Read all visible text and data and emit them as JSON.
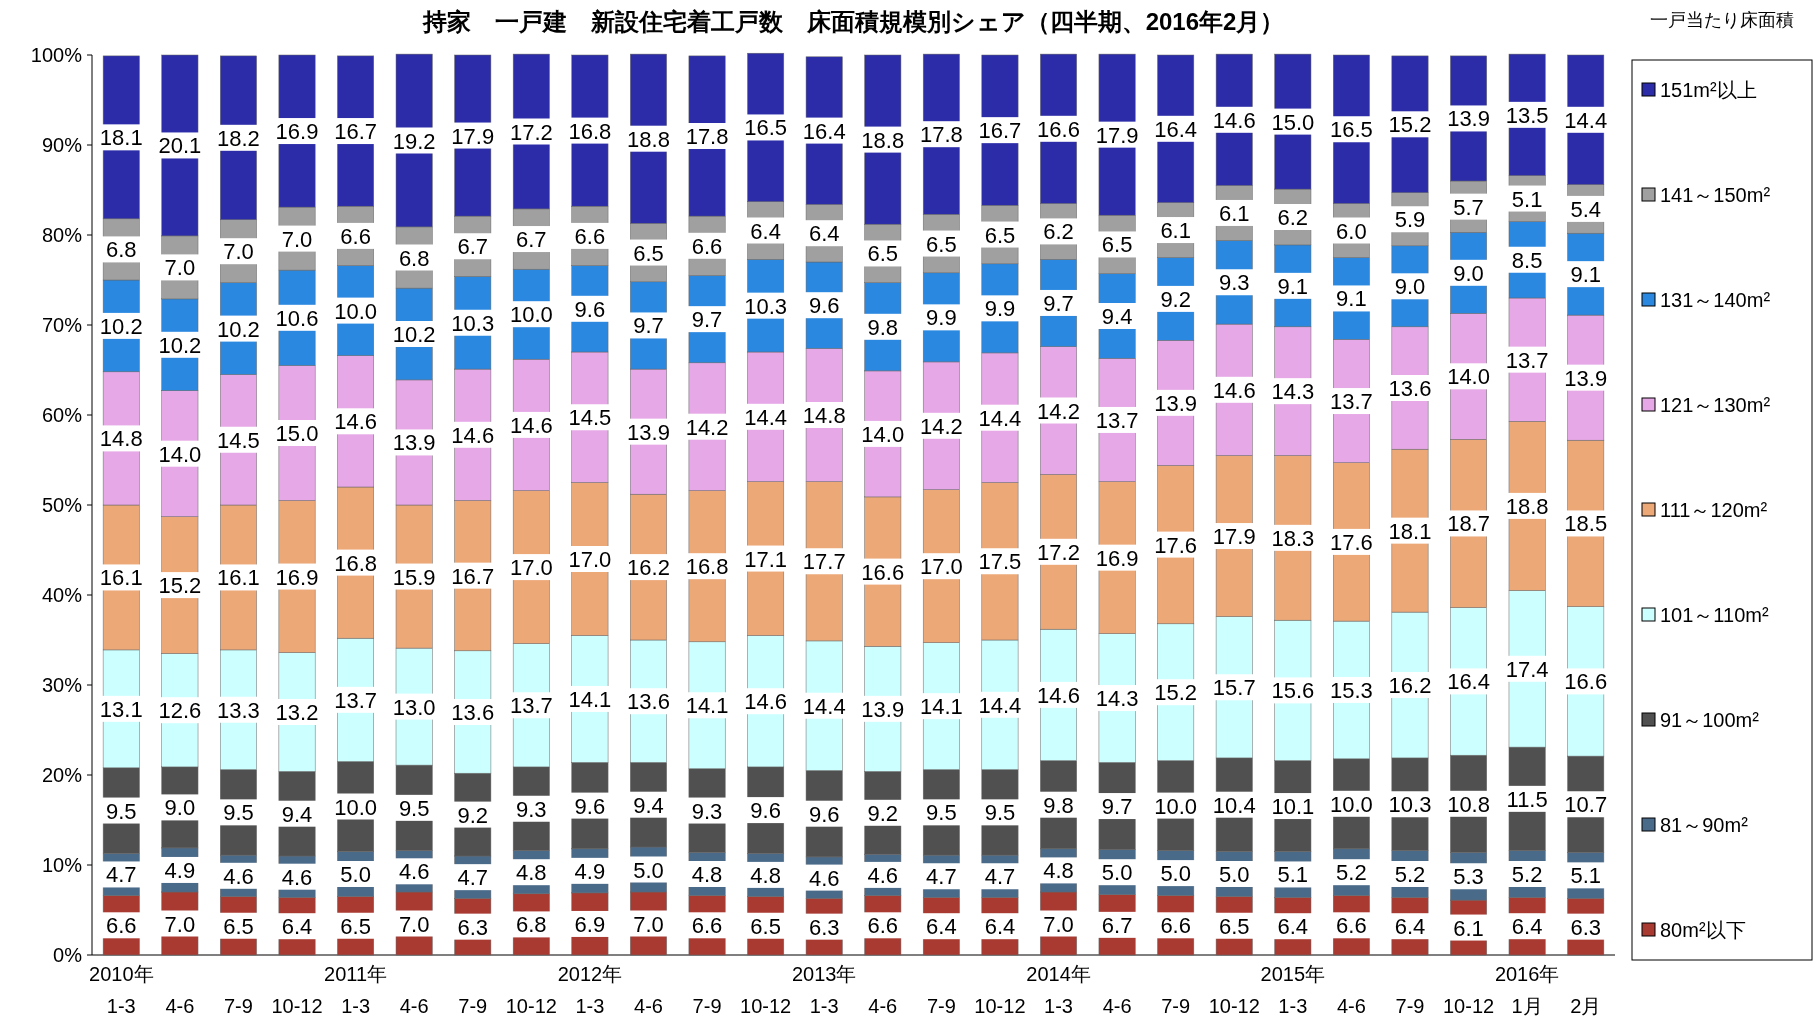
{
  "chart_data": {
    "type": "bar",
    "stacked": true,
    "grid": false,
    "legend": "right",
    "title": "持家　一戸建　新設住宅着工戸数　床面積規模別シェア（四半期、2016年2月）",
    "legend_title": "一戸当たり床面積",
    "categories": [
      "2010年\n1-3",
      "4-6",
      "7-9",
      "10-12",
      "2011年\n1-3",
      "4-6",
      "7-9",
      "10-12",
      "2012年\n1-3",
      "4-6",
      "7-9",
      "10-12",
      "2013年\n1-3",
      "4-6",
      "7-9",
      "10-12",
      "2014年\n1-3",
      "4-6",
      "7-9",
      "10-12",
      "2015年\n1-3",
      "4-6",
      "7-9",
      "10-12",
      "2016年\n1月",
      "2月"
    ],
    "ylim": [
      0,
      100
    ],
    "yticks": [
      {
        "value": 0,
        "label": "0%"
      },
      {
        "value": 10,
        "label": "10%"
      },
      {
        "value": 20,
        "label": "20%"
      },
      {
        "value": 30,
        "label": "30%"
      },
      {
        "value": 40,
        "label": "40%"
      },
      {
        "value": 50,
        "label": "50%"
      },
      {
        "value": 60,
        "label": "60%"
      },
      {
        "value": 70,
        "label": "70%"
      },
      {
        "value": 80,
        "label": "80%"
      },
      {
        "value": 90,
        "label": "90%"
      },
      {
        "value": 100,
        "label": "100%"
      }
    ],
    "series": [
      {
        "name": "80m²以下",
        "color": "#a83a32",
        "values": [
          6.6,
          7.0,
          6.5,
          6.4,
          6.5,
          7.0,
          6.3,
          6.8,
          6.9,
          7.0,
          6.6,
          6.5,
          6.3,
          6.6,
          6.4,
          6.4,
          7.0,
          6.7,
          6.6,
          6.5,
          6.4,
          6.6,
          6.4,
          6.1,
          6.4,
          6.3
        ],
        "value_labels": [
          "6.6",
          "7.0",
          "6.5",
          "6.4",
          "6.5",
          "7.0",
          "6.3",
          "6.8",
          "6.9",
          "7.0",
          "6.6",
          "6.5",
          "6.3",
          "6.6",
          "6.4",
          "6.4",
          "7.0",
          "6.7",
          "6.6",
          "6.5",
          "6.4",
          "6.6",
          "6.4",
          "6.1",
          "6.4",
          "6.3"
        ]
      },
      {
        "name": "81～90m²",
        "color": "#4a6a8a",
        "values": [
          4.7,
          4.9,
          4.6,
          4.6,
          5.0,
          4.6,
          4.7,
          4.8,
          4.9,
          5.0,
          4.8,
          4.8,
          4.6,
          4.6,
          4.7,
          4.7,
          4.8,
          5.0,
          5.0,
          5.0,
          5.1,
          5.2,
          5.2,
          5.3,
          5.2,
          5.1
        ],
        "value_labels": [
          "4.7",
          "4.9",
          "4.6",
          "4.6",
          "5.0",
          "4.6",
          "4.7",
          "4.8",
          "4.9",
          "5.0",
          "4.8",
          "4.8",
          "4.6",
          "4.6",
          "4.7",
          "4.7",
          "4.8",
          "5.0",
          "5.0",
          "5.0",
          "5.1",
          "5.2",
          "5.2",
          "5.3",
          "5.2",
          "5.1"
        ]
      },
      {
        "name": "91～100m²",
        "color": "#505050",
        "values": [
          9.5,
          9.0,
          9.5,
          9.4,
          10.0,
          9.5,
          9.2,
          9.3,
          9.6,
          9.4,
          9.3,
          9.6,
          9.6,
          9.2,
          9.5,
          9.5,
          9.8,
          9.7,
          10.0,
          10.4,
          10.1,
          10.0,
          10.3,
          10.8,
          11.5,
          10.7
        ],
        "value_labels": [
          "9.5",
          "9.0",
          "9.5",
          "9.4",
          "10.0",
          "9.5",
          "9.2",
          "9.3",
          "9.6",
          "9.4",
          "9.3",
          "9.6",
          "9.6",
          "9.2",
          "9.5",
          "9.5",
          "9.8",
          "9.7",
          "10.0",
          "10.4",
          "10.1",
          "10.0",
          "10.3",
          "10.8",
          "11.5",
          "10.7"
        ]
      },
      {
        "name": "101～110m²",
        "color": "#ccffff",
        "values": [
          13.1,
          12.6,
          13.3,
          13.2,
          13.7,
          13.0,
          13.6,
          13.7,
          14.1,
          13.6,
          14.1,
          14.6,
          14.4,
          13.9,
          14.1,
          14.4,
          14.6,
          14.3,
          15.2,
          15.7,
          15.6,
          15.3,
          16.2,
          16.4,
          17.4,
          16.6
        ],
        "value_labels": [
          "13.1",
          "12.6",
          "13.3",
          "13.2",
          "13.7",
          "13.0",
          "13.6",
          "13.7",
          "14.1",
          "13.6",
          "14.1",
          "14.6",
          "14.4",
          "13.9",
          "14.1",
          "14.4",
          "14.6",
          "14.3",
          "15.2",
          "15.7",
          "15.6",
          "15.3",
          "16.2",
          "16.4",
          "17.4",
          "16.6"
        ]
      },
      {
        "name": "111～120m²",
        "color": "#eda878",
        "values": [
          16.1,
          15.2,
          16.1,
          16.9,
          16.8,
          15.9,
          16.7,
          17.0,
          17.0,
          16.2,
          16.8,
          17.1,
          17.7,
          16.6,
          17.0,
          17.5,
          17.2,
          16.9,
          17.6,
          17.9,
          18.3,
          17.6,
          18.1,
          18.7,
          18.8,
          18.5
        ],
        "value_labels": [
          "16.1",
          "15.2",
          "16.1",
          "16.9",
          "16.8",
          "15.9",
          "16.7",
          "17.0",
          "17.0",
          "16.2",
          "16.8",
          "17.1",
          "17.7",
          "16.6",
          "17.0",
          "17.5",
          "17.2",
          "16.9",
          "17.6",
          "17.9",
          "18.3",
          "17.6",
          "18.1",
          "18.7",
          "18.8",
          "18.5"
        ]
      },
      {
        "name": "121～130m²",
        "color": "#e6a8e6",
        "values": [
          14.8,
          14.0,
          14.5,
          15.0,
          14.6,
          13.9,
          14.6,
          14.6,
          14.5,
          13.9,
          14.2,
          14.4,
          14.8,
          14.0,
          14.2,
          14.4,
          14.2,
          13.7,
          13.9,
          14.6,
          14.3,
          13.7,
          13.6,
          14.0,
          13.7,
          13.9
        ],
        "value_labels": [
          "14.8",
          "14.0",
          "14.5",
          "15.0",
          "14.6",
          "13.9",
          "14.6",
          "14.6",
          "14.5",
          "13.9",
          "14.2",
          "14.4",
          "14.8",
          "14.0",
          "14.2",
          "14.4",
          "14.2",
          "13.7",
          "13.9",
          "14.6",
          "14.3",
          "13.7",
          "13.6",
          "14.0",
          "13.7",
          "13.9"
        ]
      },
      {
        "name": "131～140m²",
        "color": "#2a88e0",
        "values": [
          10.2,
          10.2,
          10.2,
          10.6,
          10.0,
          10.2,
          10.3,
          10.0,
          9.6,
          9.7,
          9.7,
          10.3,
          9.6,
          9.8,
          9.9,
          9.9,
          9.7,
          9.4,
          9.2,
          9.3,
          9.1,
          9.1,
          9.0,
          9.0,
          8.5,
          9.1
        ],
        "value_labels": [
          "10.2",
          "10.2",
          "10.2",
          "10.6",
          "10.0",
          "10.2",
          "10.3",
          "10.0",
          "9.6",
          "9.7",
          "9.7",
          "10.3",
          "9.6",
          "9.8",
          "9.9",
          "9.9",
          "9.7",
          "9.4",
          "9.2",
          "9.3",
          "9.1",
          "9.1",
          "9.0",
          "9.0",
          "8.5",
          "9.1"
        ]
      },
      {
        "name": "141～150m²",
        "color": "#a0a0a0",
        "values": [
          6.8,
          7.0,
          7.0,
          7.0,
          6.6,
          6.8,
          6.7,
          6.7,
          6.6,
          6.5,
          6.6,
          6.4,
          6.4,
          6.5,
          6.5,
          6.5,
          6.2,
          6.5,
          6.1,
          6.1,
          6.2,
          6.0,
          5.9,
          5.7,
          5.1,
          5.4
        ],
        "value_labels": [
          "6.8",
          "7.0",
          "7.0",
          "7.0",
          "6.6",
          "6.8",
          "6.7",
          "6.7",
          "6.6",
          "6.5",
          "6.6",
          "6.4",
          "6.4",
          "6.5",
          "6.5",
          "6.5",
          "6.2",
          "6.5",
          "6.1",
          "6.1",
          "6.2",
          "6.0",
          "5.9",
          "5.7",
          "5.1",
          "5.4"
        ]
      },
      {
        "name": "151m²以上",
        "color": "#2c2ca8",
        "values": [
          18.1,
          20.1,
          18.2,
          16.9,
          16.7,
          19.2,
          17.9,
          17.2,
          16.8,
          18.8,
          17.8,
          16.5,
          16.4,
          18.8,
          17.8,
          16.7,
          16.6,
          17.9,
          16.4,
          14.6,
          15.0,
          16.5,
          15.2,
          13.9,
          13.5,
          14.4
        ],
        "value_labels": [
          "18.1",
          "20.1",
          "18.2",
          "16.9",
          "16.7",
          "19.2",
          "17.9",
          "17.2",
          "16.8",
          "18.8",
          "17.8",
          "16.5",
          "16.4",
          "18.8",
          "17.8",
          "16.7",
          "16.6",
          "17.9",
          "16.4",
          "14.6",
          "15.0",
          "16.5",
          "15.2",
          "13.9",
          "13.5",
          "14.4"
        ]
      }
    ]
  }
}
